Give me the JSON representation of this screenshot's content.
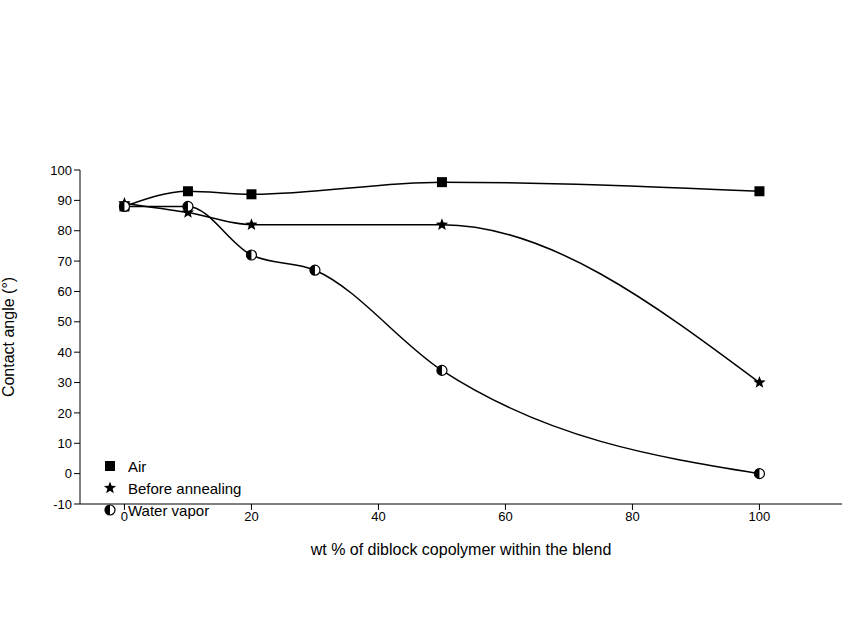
{
  "chart_data": {
    "type": "line",
    "x_label": "wt % of diblock copolymer within the blend",
    "y_label": "Contact angle (°)",
    "xlim": [
      -7,
      113
    ],
    "xticks": [
      0,
      20,
      40,
      60,
      80,
      100
    ],
    "ylim": [
      -10,
      100
    ],
    "yticks": [
      -10,
      0,
      10,
      20,
      30,
      40,
      50,
      60,
      70,
      80,
      90,
      100
    ],
    "legend": "lower left",
    "series": [
      {
        "name": "Air",
        "color": "#000000",
        "marker": "square",
        "x": [
          0,
          10,
          20,
          50,
          100
        ],
        "values": [
          88,
          93,
          92,
          96,
          93
        ]
      },
      {
        "name": "Before annealing",
        "color": "#000000",
        "marker": "star",
        "x": [
          0,
          10,
          20,
          50,
          100
        ],
        "values": [
          89,
          86,
          82,
          82,
          30
        ]
      },
      {
        "name": "Water vapor",
        "color": "#000000",
        "marker": "circle",
        "x": [
          0,
          10,
          20,
          30,
          50,
          100
        ],
        "values": [
          88,
          88,
          72,
          67,
          34,
          0
        ]
      }
    ]
  }
}
